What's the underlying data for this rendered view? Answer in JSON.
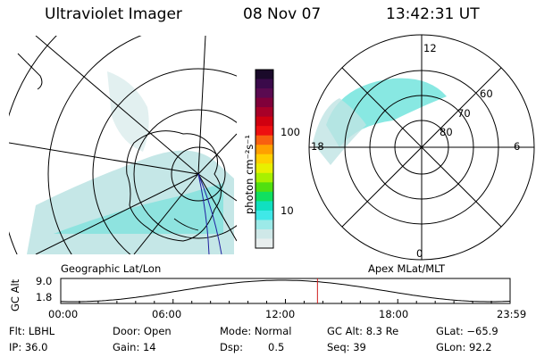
{
  "header": {
    "instrument": "Ultraviolet Imager",
    "date": "08 Nov 07",
    "time": "13:42:31 UT"
  },
  "colorbar": {
    "label": "photon cm⁻²s⁻¹",
    "ticks": [
      "100",
      "10"
    ],
    "colors": [
      "#1a0a2a",
      "#3a0a4a",
      "#5a0a50",
      "#80003a",
      "#a80028",
      "#d00010",
      "#ee1010",
      "#f86010",
      "#ffa000",
      "#ffd000",
      "#e8f000",
      "#a8f000",
      "#50e010",
      "#10e060",
      "#10e0c0",
      "#40e8e8",
      "#9ceae8",
      "#cfe8e8",
      "#e8eeee"
    ]
  },
  "polar_plot": {
    "labels": {
      "top": "12",
      "right": "6",
      "bottom": "0",
      "left": "18"
    },
    "rings": [
      "60",
      "70",
      "80"
    ]
  },
  "map_labels": {
    "geographic": "Geographic Lat/Lon",
    "apex": "Apex MLat/MLT"
  },
  "timeline": {
    "axis_label": "GC Alt",
    "y_ticks": [
      "9.0",
      "1.8"
    ],
    "x_ticks": [
      "00:00",
      "06:00",
      "12:00",
      "18:00",
      "23:59"
    ],
    "current_time_fraction": 0.5713
  },
  "info": {
    "flt": "Flt: LBHL",
    "ip": "IP: 36.0",
    "door": "Door: Open",
    "gain": "Gain: 14",
    "mode": "Mode: Normal",
    "dsp_label": "Dsp:",
    "dsp_value": "0.5",
    "gcalt": "GC Alt: 8.3 Re",
    "seq": "Seq: 39",
    "glat": "GLat: −65.9",
    "glon": "GLon: 92.2"
  }
}
